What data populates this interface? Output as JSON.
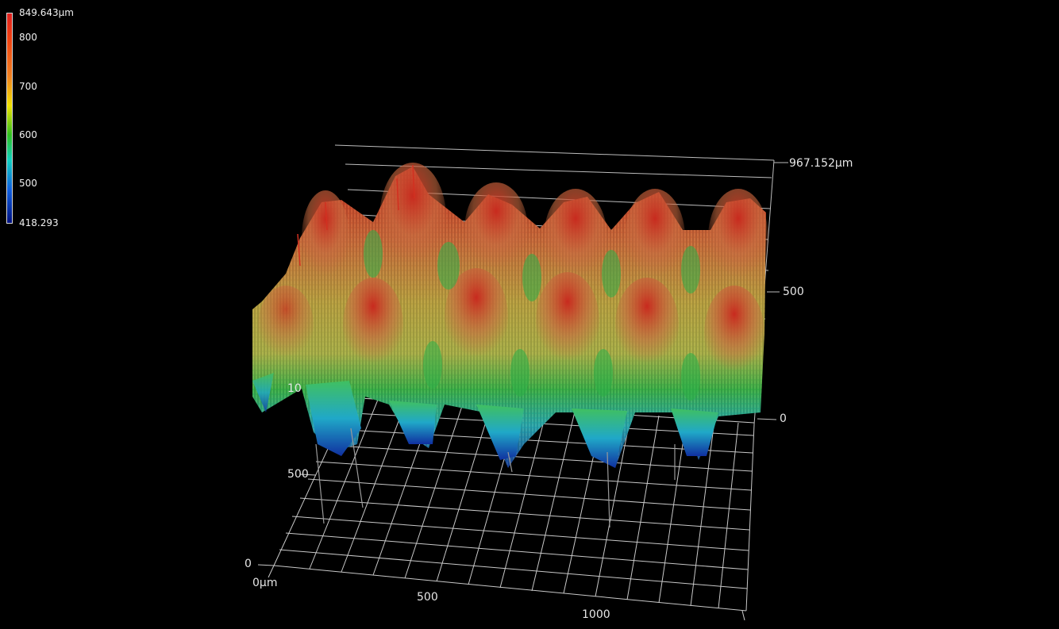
{
  "colorbar": {
    "max_label": "849.643µm",
    "min_label": "418.293",
    "ticks": [
      "800",
      "700",
      "600",
      "500"
    ]
  },
  "axes": {
    "z_max_label": "967.152µm",
    "z_mid_label": "500",
    "z_zero_label": "0",
    "y_zero_label": "0",
    "y_mid_label": "500",
    "y_top_label": "10",
    "x_origin_label": "0µm",
    "x_mid_label": "500",
    "x_end_label": "1000"
  },
  "colors": {
    "background": "#000000",
    "grid": "#cfcfcf",
    "text": "#e6e6e6"
  }
}
